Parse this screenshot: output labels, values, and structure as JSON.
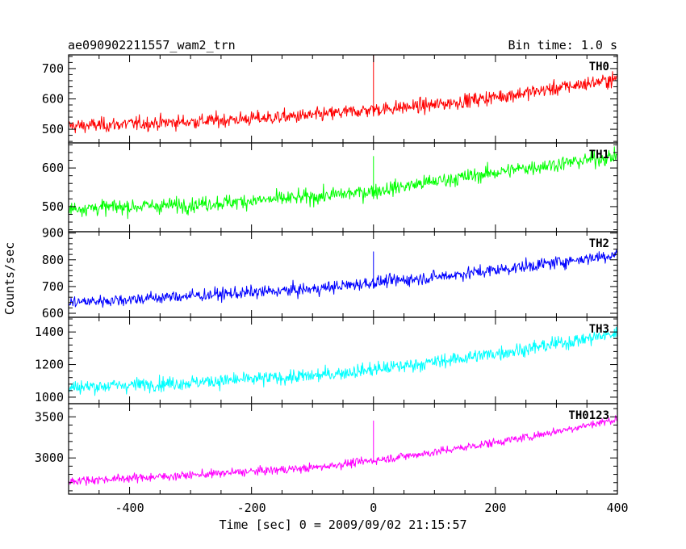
{
  "header": {
    "title": "ae090902211557_wam2_trn",
    "bin_time": "Bin time: 1.0 s"
  },
  "chart_data": {
    "type": "line",
    "title": "ae090902211557_wam2_trn",
    "subtitle": "Bin time: 1.0 s",
    "xlabel": "Time [sec] 0 = 2009/09/02 21:15:57",
    "ylabel": "Counts/sec",
    "xlim": [
      -500,
      400
    ],
    "x_ticks": [
      -400,
      -200,
      0,
      200,
      400
    ],
    "x_start": -499,
    "x_step": 1,
    "grid": false,
    "panels": [
      {
        "name": "TH0",
        "color": "#ff0000",
        "ylim": [
          455,
          745
        ],
        "y_ticks": [
          500,
          600,
          700
        ],
        "trend": [
          [
            -499,
            510
          ],
          [
            -300,
            525
          ],
          [
            -100,
            545
          ],
          [
            0,
            565
          ],
          [
            100,
            580
          ],
          [
            250,
            620
          ],
          [
            399,
            665
          ]
        ],
        "noise": 30,
        "spikes": [
          {
            "x": 0,
            "value": 745
          },
          {
            "x": 0,
            "value": 680
          }
        ]
      },
      {
        "name": "TH1",
        "color": "#00ff00",
        "ylim": [
          435,
          665
        ],
        "y_ticks": [
          500,
          600
        ],
        "trend": [
          [
            -499,
            495
          ],
          [
            -300,
            505
          ],
          [
            -100,
            525
          ],
          [
            0,
            540
          ],
          [
            100,
            565
          ],
          [
            250,
            600
          ],
          [
            399,
            630
          ]
        ],
        "noise": 25,
        "spikes": [
          {
            "x": 0,
            "value": 630
          }
        ]
      },
      {
        "name": "TH2",
        "color": "#0000ff",
        "ylim": [
          585,
          905
        ],
        "y_ticks": [
          600,
          700,
          800,
          900
        ],
        "trend": [
          [
            -499,
            640
          ],
          [
            -300,
            665
          ],
          [
            -100,
            690
          ],
          [
            0,
            715
          ],
          [
            100,
            735
          ],
          [
            250,
            775
          ],
          [
            399,
            820
          ]
        ],
        "noise": 30,
        "spikes": [
          {
            "x": 0,
            "value": 830
          }
        ]
      },
      {
        "name": "TH3",
        "color": "#00ffff",
        "ylim": [
          960,
          1490
        ],
        "y_ticks": [
          1000,
          1200,
          1400
        ],
        "trend": [
          [
            -499,
            1060
          ],
          [
            -300,
            1090
          ],
          [
            -100,
            1130
          ],
          [
            0,
            1170
          ],
          [
            100,
            1215
          ],
          [
            250,
            1295
          ],
          [
            399,
            1390
          ]
        ],
        "noise": 55,
        "spikes": []
      },
      {
        "name": "TH0123",
        "color": "#ff00ff",
        "ylim": [
          2560,
          3660
        ],
        "y_ticks": [
          3000,
          3500
        ],
        "trend": [
          [
            -499,
            2720
          ],
          [
            -300,
            2790
          ],
          [
            -100,
            2880
          ],
          [
            0,
            2970
          ],
          [
            100,
            3070
          ],
          [
            250,
            3250
          ],
          [
            399,
            3470
          ]
        ],
        "noise": 65,
        "spikes": [
          {
            "x": 0,
            "value": 3450
          }
        ]
      }
    ]
  }
}
